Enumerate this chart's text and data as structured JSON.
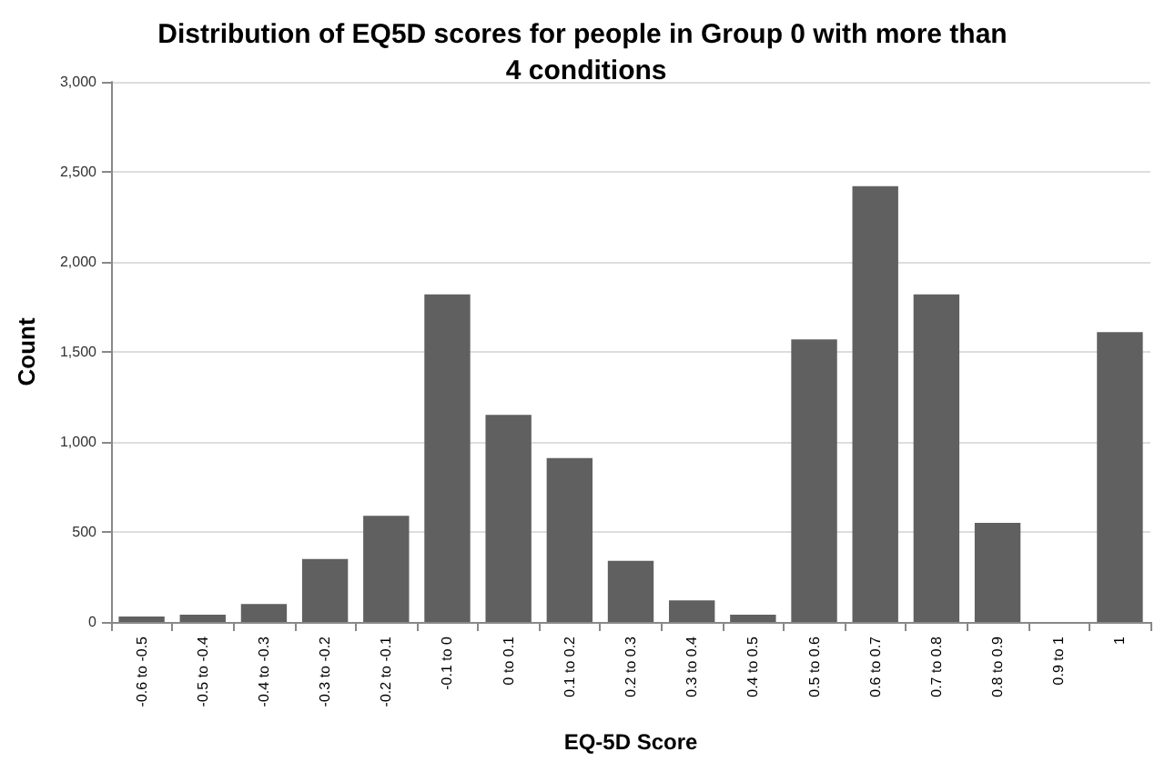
{
  "chart_data": {
    "type": "bar",
    "title": "Distribution of EQ5D scores for people in Group 0 with more than 4 conditions",
    "xlabel": "EQ-5D Score",
    "ylabel": "Count",
    "categories": [
      "-0.6 to -0.5",
      "-0.5 to -0.4",
      "-0.4 to -0.3",
      "-0.3 to -0.2",
      "-0.2 to -0.1",
      "-0.1 to 0",
      "0 to 0.1",
      "0.1 to 0.2",
      "0.2 to 0.3",
      "0.3 to 0.4",
      "0.4 to 0.5",
      "0.5 to 0.6",
      "0.6 to 0.7",
      "0.7 to 0.8",
      "0.8 to 0.9",
      "0.9 to 1",
      "1"
    ],
    "values": [
      30,
      40,
      100,
      350,
      590,
      1820,
      1150,
      910,
      340,
      120,
      40,
      1570,
      2420,
      1820,
      550,
      0,
      1610
    ],
    "color": "#606060",
    "ylim": [
      0,
      3000
    ],
    "yticks": [
      {
        "value": 0,
        "label": "0"
      },
      {
        "value": 500,
        "label": "500"
      },
      {
        "value": 1000,
        "label": "1,000"
      },
      {
        "value": 1500,
        "label": "1,500"
      },
      {
        "value": 2000,
        "label": "2,000"
      },
      {
        "value": 2500,
        "label": "2,500"
      },
      {
        "value": 3000,
        "label": "3,000"
      }
    ],
    "grid": "y"
  }
}
